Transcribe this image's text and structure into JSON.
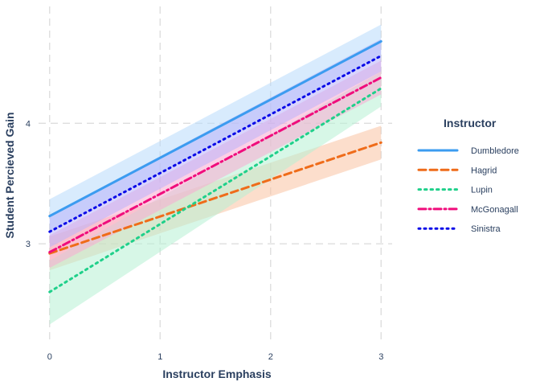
{
  "chart_data": {
    "type": "line",
    "xlabel": "Instructor Emphasis",
    "ylabel": "Student Percieved Gain",
    "x": [
      0,
      3
    ],
    "xticks": [
      "0",
      "1",
      "2",
      "3"
    ],
    "yticks": [
      "3",
      "4"
    ],
    "xlim": [
      -0.1,
      3.1
    ],
    "ylim": [
      2.18,
      4.97
    ],
    "grid": true,
    "legend": {
      "title": "Instructor",
      "placement": "right"
    },
    "series": [
      {
        "name": "Dumbledore",
        "color": "#3b9cf0",
        "dash": "solid",
        "fill": "#b8dafb",
        "values": [
          3.23,
          4.68
        ],
        "lower": [
          3.1,
          4.55
        ],
        "upper": [
          3.37,
          4.82
        ]
      },
      {
        "name": "Hagrid",
        "color": "#ef6c1a",
        "dash": "dashed",
        "fill": "#f9c3a2",
        "values": [
          2.92,
          3.84
        ],
        "lower": [
          2.78,
          3.7
        ],
        "upper": [
          3.06,
          3.98
        ]
      },
      {
        "name": "Lupin",
        "color": "#1fd08a",
        "dash": "dotted",
        "fill": "#b6f0d3",
        "values": [
          2.6,
          4.29
        ],
        "lower": [
          2.33,
          4.14
        ],
        "upper": [
          2.86,
          4.43
        ]
      },
      {
        "name": "McGonagall",
        "color": "#f00d7c",
        "dash": "dashdot",
        "fill": "#f9a9d2",
        "values": [
          2.93,
          4.38
        ],
        "lower": [
          2.8,
          4.24
        ],
        "upper": [
          3.07,
          4.52
        ]
      },
      {
        "name": "Sinistra",
        "color": "#0a0ae8",
        "dash": "dot",
        "fill": "#b9b3fa",
        "values": [
          3.1,
          4.56
        ],
        "lower": [
          2.97,
          4.43
        ],
        "upper": [
          3.24,
          4.7
        ]
      }
    ]
  }
}
